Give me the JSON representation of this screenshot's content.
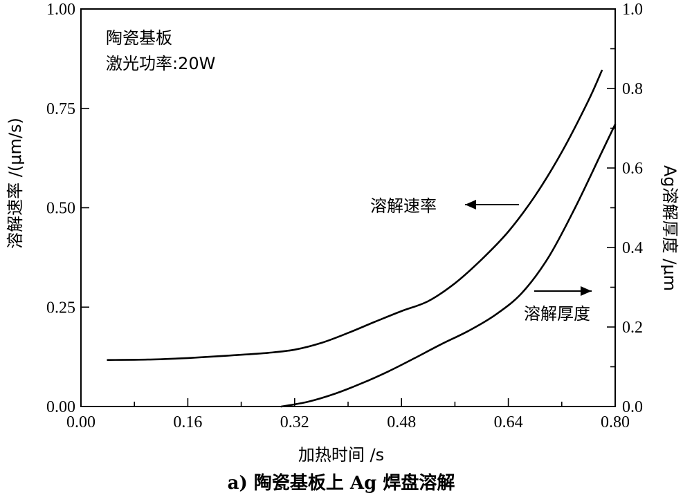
{
  "chart_data": {
    "type": "line",
    "xlabel": "加热时间 /s",
    "ylabel_left": "溶解速率 /(μm/s)",
    "ylabel_right": "Ag溶解厚度 /μm",
    "xlim": [
      0.0,
      0.8
    ],
    "ylim_left": [
      0.0,
      1.0
    ],
    "ylim_right": [
      0.0,
      1.0
    ],
    "x_ticks": [
      "0.00",
      "0.16",
      "0.32",
      "0.48",
      "0.64",
      "0.80"
    ],
    "y_left_ticks": [
      "0.00",
      "0.25",
      "0.50",
      "0.75",
      "1.00"
    ],
    "y_right_ticks": [
      "0.0",
      "0.2",
      "0.4",
      "0.6",
      "0.8",
      "1.0"
    ],
    "grid": false,
    "annotations": {
      "condition_1": "陶瓷基板",
      "condition_2": "激光功率:20W",
      "rate_label": "溶解速率",
      "thickness_label": "溶解厚度"
    },
    "caption": "a) 陶瓷基板上 Ag 焊盘溶解",
    "series": [
      {
        "name": "溶解速率",
        "axis": "left",
        "x": [
          0.04,
          0.1,
          0.16,
          0.22,
          0.28,
          0.32,
          0.36,
          0.4,
          0.44,
          0.48,
          0.52,
          0.56,
          0.6,
          0.64,
          0.68,
          0.72,
          0.76,
          0.78
        ],
        "y": [
          0.117,
          0.118,
          0.122,
          0.128,
          0.135,
          0.143,
          0.16,
          0.185,
          0.213,
          0.24,
          0.265,
          0.31,
          0.37,
          0.44,
          0.53,
          0.64,
          0.77,
          0.845
        ]
      },
      {
        "name": "溶解厚度",
        "axis": "right",
        "x": [
          0.3,
          0.34,
          0.38,
          0.42,
          0.46,
          0.5,
          0.54,
          0.58,
          0.62,
          0.66,
          0.7,
          0.74,
          0.78,
          0.8
        ],
        "y": [
          0.0,
          0.012,
          0.032,
          0.058,
          0.088,
          0.122,
          0.157,
          0.19,
          0.23,
          0.285,
          0.375,
          0.5,
          0.64,
          0.71
        ]
      }
    ]
  }
}
